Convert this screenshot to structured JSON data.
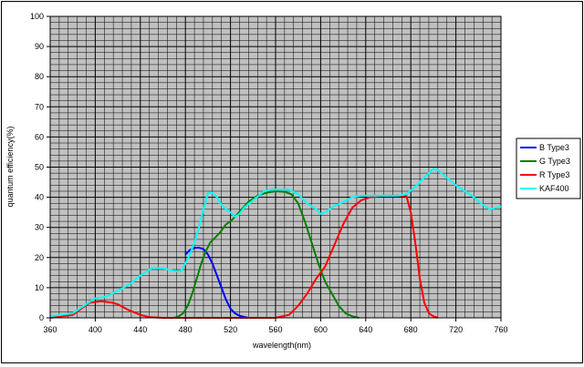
{
  "chart_data": {
    "type": "line",
    "xlabel": "wavelength(nm)",
    "ylabel": "quantum efficiency(%)",
    "xlim": [
      360,
      760
    ],
    "ylim": [
      0,
      100
    ],
    "x_ticks": [
      "360",
      "400",
      "440",
      "480",
      "520",
      "560",
      "600",
      "640",
      "680",
      "720",
      "760"
    ],
    "y_ticks": [
      "0",
      "10",
      "20",
      "30",
      "40",
      "50",
      "60",
      "70",
      "80",
      "90",
      "100"
    ],
    "grid": true,
    "legend_position": "right",
    "plot_background": "#c0c0c0",
    "series": [
      {
        "name": "B Type3",
        "color": "#0000ff",
        "points": [
          [
            480,
            21
          ],
          [
            484,
            22.5
          ],
          [
            488,
            23.2
          ],
          [
            492,
            23.3
          ],
          [
            496,
            22.8
          ],
          [
            500,
            21
          ],
          [
            504,
            18
          ],
          [
            508,
            14
          ],
          [
            512,
            10
          ],
          [
            516,
            6
          ],
          [
            520,
            3
          ],
          [
            524,
            1.5
          ],
          [
            528,
            0.7
          ],
          [
            532,
            0.3
          ],
          [
            536,
            0
          ]
        ]
      },
      {
        "name": "G Type3",
        "color": "#008000",
        "points": [
          [
            470,
            0
          ],
          [
            474,
            0.5
          ],
          [
            478,
            1.5
          ],
          [
            482,
            4
          ],
          [
            486,
            8
          ],
          [
            490,
            13
          ],
          [
            494,
            18
          ],
          [
            498,
            22
          ],
          [
            502,
            25
          ],
          [
            510,
            28
          ],
          [
            516,
            31
          ],
          [
            520,
            32
          ],
          [
            524,
            33.5
          ],
          [
            530,
            36
          ],
          [
            536,
            38.5
          ],
          [
            544,
            40.5
          ],
          [
            552,
            41.5
          ],
          [
            560,
            42
          ],
          [
            568,
            41.8
          ],
          [
            574,
            41
          ],
          [
            580,
            38
          ],
          [
            586,
            32
          ],
          [
            592,
            25
          ],
          [
            598,
            18
          ],
          [
            604,
            12
          ],
          [
            610,
            8
          ],
          [
            616,
            4
          ],
          [
            622,
            1.5
          ],
          [
            628,
            0.5
          ],
          [
            634,
            0
          ]
        ]
      },
      {
        "name": "R Type3",
        "color": "#ff0000",
        "points": [
          [
            360,
            0
          ],
          [
            380,
            1
          ],
          [
            395,
            5
          ],
          [
            405,
            5.5
          ],
          [
            415,
            5
          ],
          [
            420,
            4.5
          ],
          [
            430,
            2.5
          ],
          [
            440,
            1
          ],
          [
            448,
            0.2
          ],
          [
            460,
            0
          ],
          [
            560,
            0
          ],
          [
            572,
            1
          ],
          [
            580,
            4
          ],
          [
            588,
            8
          ],
          [
            596,
            13
          ],
          [
            604,
            17
          ],
          [
            612,
            24
          ],
          [
            620,
            31
          ],
          [
            628,
            36.5
          ],
          [
            636,
            39
          ],
          [
            644,
            40
          ],
          [
            656,
            40.5
          ],
          [
            668,
            40.5
          ],
          [
            676,
            40.5
          ],
          [
            680,
            35
          ],
          [
            684,
            25
          ],
          [
            688,
            13
          ],
          [
            692,
            5
          ],
          [
            696,
            1.5
          ],
          [
            700,
            0.5
          ],
          [
            704,
            0
          ]
        ]
      },
      {
        "name": "KAF400",
        "color": "#00ffff",
        "points": [
          [
            360,
            0.5
          ],
          [
            370,
            1
          ],
          [
            380,
            1.5
          ],
          [
            390,
            4
          ],
          [
            400,
            6.5
          ],
          [
            410,
            7
          ],
          [
            420,
            9
          ],
          [
            430,
            11
          ],
          [
            440,
            14
          ],
          [
            450,
            16.5
          ],
          [
            460,
            16.5
          ],
          [
            470,
            15.5
          ],
          [
            476,
            15.5
          ],
          [
            480,
            18
          ],
          [
            484,
            21
          ],
          [
            488,
            25
          ],
          [
            492,
            30
          ],
          [
            496,
            36
          ],
          [
            500,
            41.5
          ],
          [
            504,
            41.5
          ],
          [
            508,
            40
          ],
          [
            512,
            37.5
          ],
          [
            516,
            36
          ],
          [
            520,
            35
          ],
          [
            524,
            33.5
          ],
          [
            528,
            34.5
          ],
          [
            532,
            36.5
          ],
          [
            540,
            39
          ],
          [
            550,
            42
          ],
          [
            556,
            42.5
          ],
          [
            564,
            42.5
          ],
          [
            572,
            42.5
          ],
          [
            580,
            41
          ],
          [
            588,
            38
          ],
          [
            596,
            36
          ],
          [
            600,
            34.5
          ],
          [
            604,
            35
          ],
          [
            612,
            37
          ],
          [
            620,
            38.5
          ],
          [
            628,
            40
          ],
          [
            636,
            40.5
          ],
          [
            648,
            40.5
          ],
          [
            660,
            40.5
          ],
          [
            668,
            40.5
          ],
          [
            676,
            41
          ],
          [
            684,
            43.5
          ],
          [
            692,
            46.5
          ],
          [
            700,
            49.5
          ],
          [
            704,
            49
          ],
          [
            712,
            46.5
          ],
          [
            720,
            44
          ],
          [
            728,
            42
          ],
          [
            736,
            40
          ],
          [
            744,
            37.5
          ],
          [
            750,
            36
          ],
          [
            756,
            36.5
          ],
          [
            760,
            37
          ]
        ]
      }
    ]
  }
}
